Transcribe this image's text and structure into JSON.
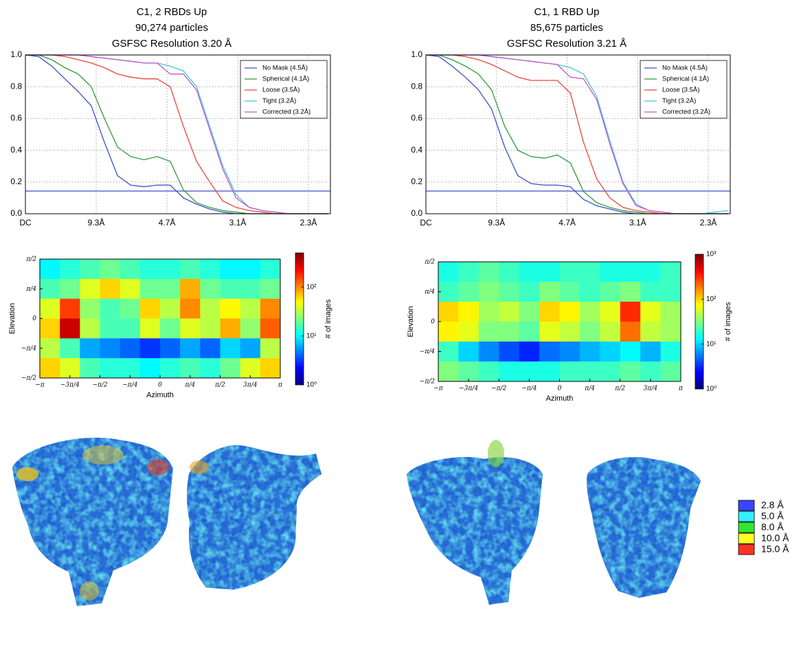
{
  "chart_data": [
    {
      "type": "line",
      "title_lines": [
        "C1, 2 RBDs Up",
        "90,274 particles",
        "GSFSC Resolution 3.20 Å"
      ],
      "x": [
        0,
        0.02,
        0.04,
        0.06,
        0.08,
        0.1,
        0.12,
        0.14,
        0.16,
        0.18,
        0.2,
        0.22,
        0.24,
        0.26,
        0.28,
        0.3,
        0.32,
        0.34,
        0.36,
        0.38,
        0.4,
        0.42,
        0.44,
        0.46
      ],
      "xlim": [
        0,
        0.4634
      ],
      "ylim": [
        0,
        1
      ],
      "xticks": [
        {
          "value": 0,
          "label": "DC"
        },
        {
          "value": 0.1075,
          "label": "9.3Å"
        },
        {
          "value": 0.215,
          "label": "4.7Å"
        },
        {
          "value": 0.3225,
          "label": "3.1Å"
        },
        {
          "value": 0.43,
          "label": "2.3Å"
        }
      ],
      "yticks": [
        {
          "value": 0,
          "label": "0.0"
        },
        0.2,
        0.4,
        0.6,
        0.8,
        {
          "value": 1,
          "label": "1.0"
        }
      ],
      "grid": true,
      "threshold": {
        "value": 0.143,
        "color": "#3b4fc4"
      },
      "series": [
        {
          "name": "No Mask (4.5Å)",
          "color": "#3b4fc4",
          "values": [
            1,
            0.99,
            0.93,
            0.85,
            0.77,
            0.68,
            0.45,
            0.24,
            0.18,
            0.17,
            0.18,
            0.18,
            0.1,
            0.06,
            0.03,
            0.01,
            0,
            0,
            0,
            0,
            0,
            0,
            0,
            0
          ]
        },
        {
          "name": "Spherical (4.1Å)",
          "color": "#2e9a3a",
          "values": [
            1,
            1,
            0.97,
            0.92,
            0.88,
            0.8,
            0.6,
            0.42,
            0.36,
            0.34,
            0.36,
            0.33,
            0.15,
            0.07,
            0.04,
            0.02,
            0.01,
            0,
            0,
            0,
            0,
            0,
            0,
            0
          ]
        },
        {
          "name": "Loose (3.5Å)",
          "color": "#e8463a",
          "values": [
            1,
            1,
            1,
            0.99,
            0.97,
            0.95,
            0.92,
            0.88,
            0.86,
            0.85,
            0.85,
            0.8,
            0.55,
            0.33,
            0.2,
            0.08,
            0.04,
            0.02,
            0.01,
            0,
            0,
            0,
            0,
            0
          ]
        },
        {
          "name": "Tight (3.2Å)",
          "color": "#3fc8d0",
          "values": [
            1,
            1,
            1,
            1,
            1,
            0.99,
            0.98,
            0.97,
            0.96,
            0.95,
            0.95,
            0.93,
            0.9,
            0.8,
            0.55,
            0.3,
            0.12,
            0.04,
            0.02,
            0.01,
            0,
            0,
            0,
            0
          ]
        },
        {
          "name": "Corrected (3.2Å)",
          "color": "#c054c8",
          "values": [
            1,
            1,
            1,
            1,
            1,
            0.99,
            0.98,
            0.97,
            0.96,
            0.95,
            0.95,
            0.88,
            0.88,
            0.78,
            0.53,
            0.28,
            0.1,
            0.04,
            0.02,
            0.01,
            0,
            0,
            0,
            0
          ]
        }
      ]
    },
    {
      "type": "line",
      "title_lines": [
        "C1, 1 RBD Up",
        "85,675 particles",
        "GSFSC Resolution 3.21 Å"
      ],
      "x": [
        0,
        0.02,
        0.04,
        0.06,
        0.08,
        0.1,
        0.12,
        0.14,
        0.16,
        0.18,
        0.2,
        0.22,
        0.24,
        0.26,
        0.28,
        0.3,
        0.32,
        0.34,
        0.36,
        0.38,
        0.4,
        0.42,
        0.44,
        0.46
      ],
      "xlim": [
        0,
        0.4634
      ],
      "ylim": [
        0,
        1
      ],
      "xticks": [
        {
          "value": 0,
          "label": "DC"
        },
        {
          "value": 0.1075,
          "label": "9.3Å"
        },
        {
          "value": 0.215,
          "label": "4.7Å"
        },
        {
          "value": 0.3225,
          "label": "3.1Å"
        },
        {
          "value": 0.43,
          "label": "2.3Å"
        }
      ],
      "yticks": [
        {
          "value": 0,
          "label": "0.0"
        },
        0.2,
        0.4,
        0.6,
        0.8,
        {
          "value": 1,
          "label": "1.0"
        }
      ],
      "grid": true,
      "threshold": {
        "value": 0.143,
        "color": "#3b4fc4"
      },
      "series": [
        {
          "name": "No Mask (4.5Å)",
          "color": "#3b4fc4",
          "values": [
            1,
            0.99,
            0.93,
            0.86,
            0.78,
            0.66,
            0.42,
            0.24,
            0.19,
            0.18,
            0.18,
            0.17,
            0.09,
            0.05,
            0.03,
            0.01,
            0,
            0,
            0,
            0,
            0,
            0,
            0,
            0
          ]
        },
        {
          "name": "Spherical (4.1Å)",
          "color": "#2e9a3a",
          "values": [
            1,
            1,
            0.97,
            0.93,
            0.88,
            0.78,
            0.55,
            0.4,
            0.36,
            0.35,
            0.37,
            0.32,
            0.14,
            0.07,
            0.04,
            0.02,
            0.01,
            0,
            0,
            0,
            0,
            0,
            0,
            0
          ]
        },
        {
          "name": "Loose (3.5Å)",
          "color": "#e8463a",
          "values": [
            1,
            1,
            1,
            0.99,
            0.97,
            0.94,
            0.9,
            0.86,
            0.84,
            0.84,
            0.84,
            0.76,
            0.45,
            0.22,
            0.1,
            0.04,
            0.02,
            0.01,
            0,
            0,
            0,
            0,
            0,
            0
          ]
        },
        {
          "name": "Tight (3.2Å)",
          "color": "#3fc8d0",
          "values": [
            1,
            1,
            1,
            1,
            1,
            0.99,
            0.98,
            0.97,
            0.96,
            0.95,
            0.94,
            0.92,
            0.88,
            0.74,
            0.46,
            0.2,
            0.06,
            0.02,
            0.01,
            0,
            0,
            0,
            0.01,
            0.02
          ]
        },
        {
          "name": "Corrected (3.2Å)",
          "color": "#c054c8",
          "values": [
            1,
            1,
            1,
            1,
            1,
            0.99,
            0.98,
            0.97,
            0.96,
            0.95,
            0.94,
            0.86,
            0.85,
            0.72,
            0.44,
            0.19,
            0.05,
            0.02,
            0.01,
            0,
            0,
            0,
            0,
            0
          ]
        }
      ]
    },
    {
      "type": "heatmap",
      "xlabel": "Azimuth",
      "ylabel": "Elevation",
      "colorbar_label": "# of images",
      "xlim": [
        -3.1416,
        3.1416
      ],
      "ylim": [
        -1.5708,
        1.5708
      ],
      "xticks": [
        {
          "value": -3.1416,
          "label": "−π"
        },
        {
          "value": -2.3562,
          "label": "−3π/4"
        },
        {
          "value": -1.5708,
          "label": "−π/2"
        },
        {
          "value": -0.7854,
          "label": "−π/4"
        },
        0,
        {
          "value": 0.7854,
          "label": "π/4"
        },
        {
          "value": 1.5708,
          "label": "π/2"
        },
        {
          "value": 2.3562,
          "label": "3π/4"
        },
        {
          "value": 3.1416,
          "label": "π"
        }
      ],
      "yticks": [
        {
          "value": -1.5708,
          "label": "−π/2"
        },
        {
          "value": -0.7854,
          "label": "−π/4"
        },
        0,
        {
          "value": 0.7854,
          "label": "π/4"
        },
        {
          "value": 1.5708,
          "label": "π/2"
        }
      ],
      "log_color": true,
      "clim": [
        1,
        500
      ],
      "colorbar_ticks": [
        {
          "value": 1,
          "label": "10⁰"
        },
        {
          "value": 10,
          "label": "10¹"
        },
        {
          "value": 100,
          "label": "10²"
        }
      ],
      "cells": [
        [
          10,
          13,
          16,
          20,
          16,
          13,
          13,
          16,
          13,
          10,
          10,
          13
        ],
        [
          16,
          20,
          40,
          63,
          40,
          20,
          20,
          80,
          20,
          16,
          16,
          20
        ],
        [
          40,
          160,
          25,
          16,
          20,
          63,
          32,
          100,
          32,
          50,
          32,
          100
        ],
        [
          63,
          320,
          32,
          16,
          16,
          40,
          20,
          40,
          32,
          80,
          25,
          130
        ],
        [
          32,
          16,
          6,
          5,
          4,
          3,
          4,
          6,
          4,
          8,
          6,
          32
        ],
        [
          63,
          40,
          16,
          13,
          13,
          10,
          13,
          16,
          13,
          20,
          40,
          63
        ]
      ]
    },
    {
      "type": "heatmap",
      "xlabel": "Azimuth",
      "ylabel": "Elevation",
      "colorbar_label": "# of images",
      "xlim": [
        -3.1416,
        3.1416
      ],
      "ylim": [
        -1.5708,
        1.5708
      ],
      "xticks": [
        {
          "value": -3.1416,
          "label": "−π"
        },
        {
          "value": -2.3562,
          "label": "−3π/4"
        },
        {
          "value": -1.5708,
          "label": "−π/2"
        },
        {
          "value": -0.7854,
          "label": "−π/4"
        },
        0,
        {
          "value": 0.7854,
          "label": "π/4"
        },
        {
          "value": 1.5708,
          "label": "π/2"
        },
        {
          "value": 2.3562,
          "label": "3π/4"
        },
        {
          "value": 3.1416,
          "label": "π"
        }
      ],
      "yticks": [
        {
          "value": -1.5708,
          "label": "−π/2"
        },
        {
          "value": -0.7854,
          "label": "−π/4"
        },
        0,
        {
          "value": 0.7854,
          "label": "π/4"
        },
        {
          "value": 1.5708,
          "label": "π/2"
        }
      ],
      "log_color": true,
      "clim": [
        1,
        1000
      ],
      "colorbar_ticks": [
        {
          "value": 1,
          "label": "10⁰"
        },
        {
          "value": 10,
          "label": "10¹"
        },
        {
          "value": 100,
          "label": "10²"
        },
        {
          "value": 1000,
          "label": "10³"
        }
      ],
      "cells": [
        [
          16,
          20,
          25,
          20,
          16,
          16,
          20,
          20,
          16,
          16,
          16,
          20
        ],
        [
          20,
          25,
          32,
          25,
          20,
          32,
          25,
          20,
          25,
          32,
          20,
          20
        ],
        [
          100,
          80,
          40,
          50,
          32,
          100,
          80,
          40,
          63,
          320,
          63,
          40
        ],
        [
          80,
          63,
          32,
          32,
          25,
          63,
          50,
          32,
          50,
          200,
          50,
          40
        ],
        [
          20,
          10,
          6,
          4,
          3,
          5,
          6,
          8,
          10,
          13,
          8,
          16
        ],
        [
          32,
          25,
          20,
          16,
          16,
          16,
          20,
          20,
          20,
          25,
          20,
          25
        ]
      ]
    }
  ],
  "resolution_scale": {
    "items": [
      {
        "label": "2.8 Å",
        "color": "#3a45ff"
      },
      {
        "label": "5.0 Å",
        "color": "#33f0ff"
      },
      {
        "label": "8.0 Å",
        "color": "#33e633"
      },
      {
        "label": "10.0 Å",
        "color": "#ffff22"
      },
      {
        "label": "15.0 Å",
        "color": "#ff3322"
      }
    ]
  }
}
